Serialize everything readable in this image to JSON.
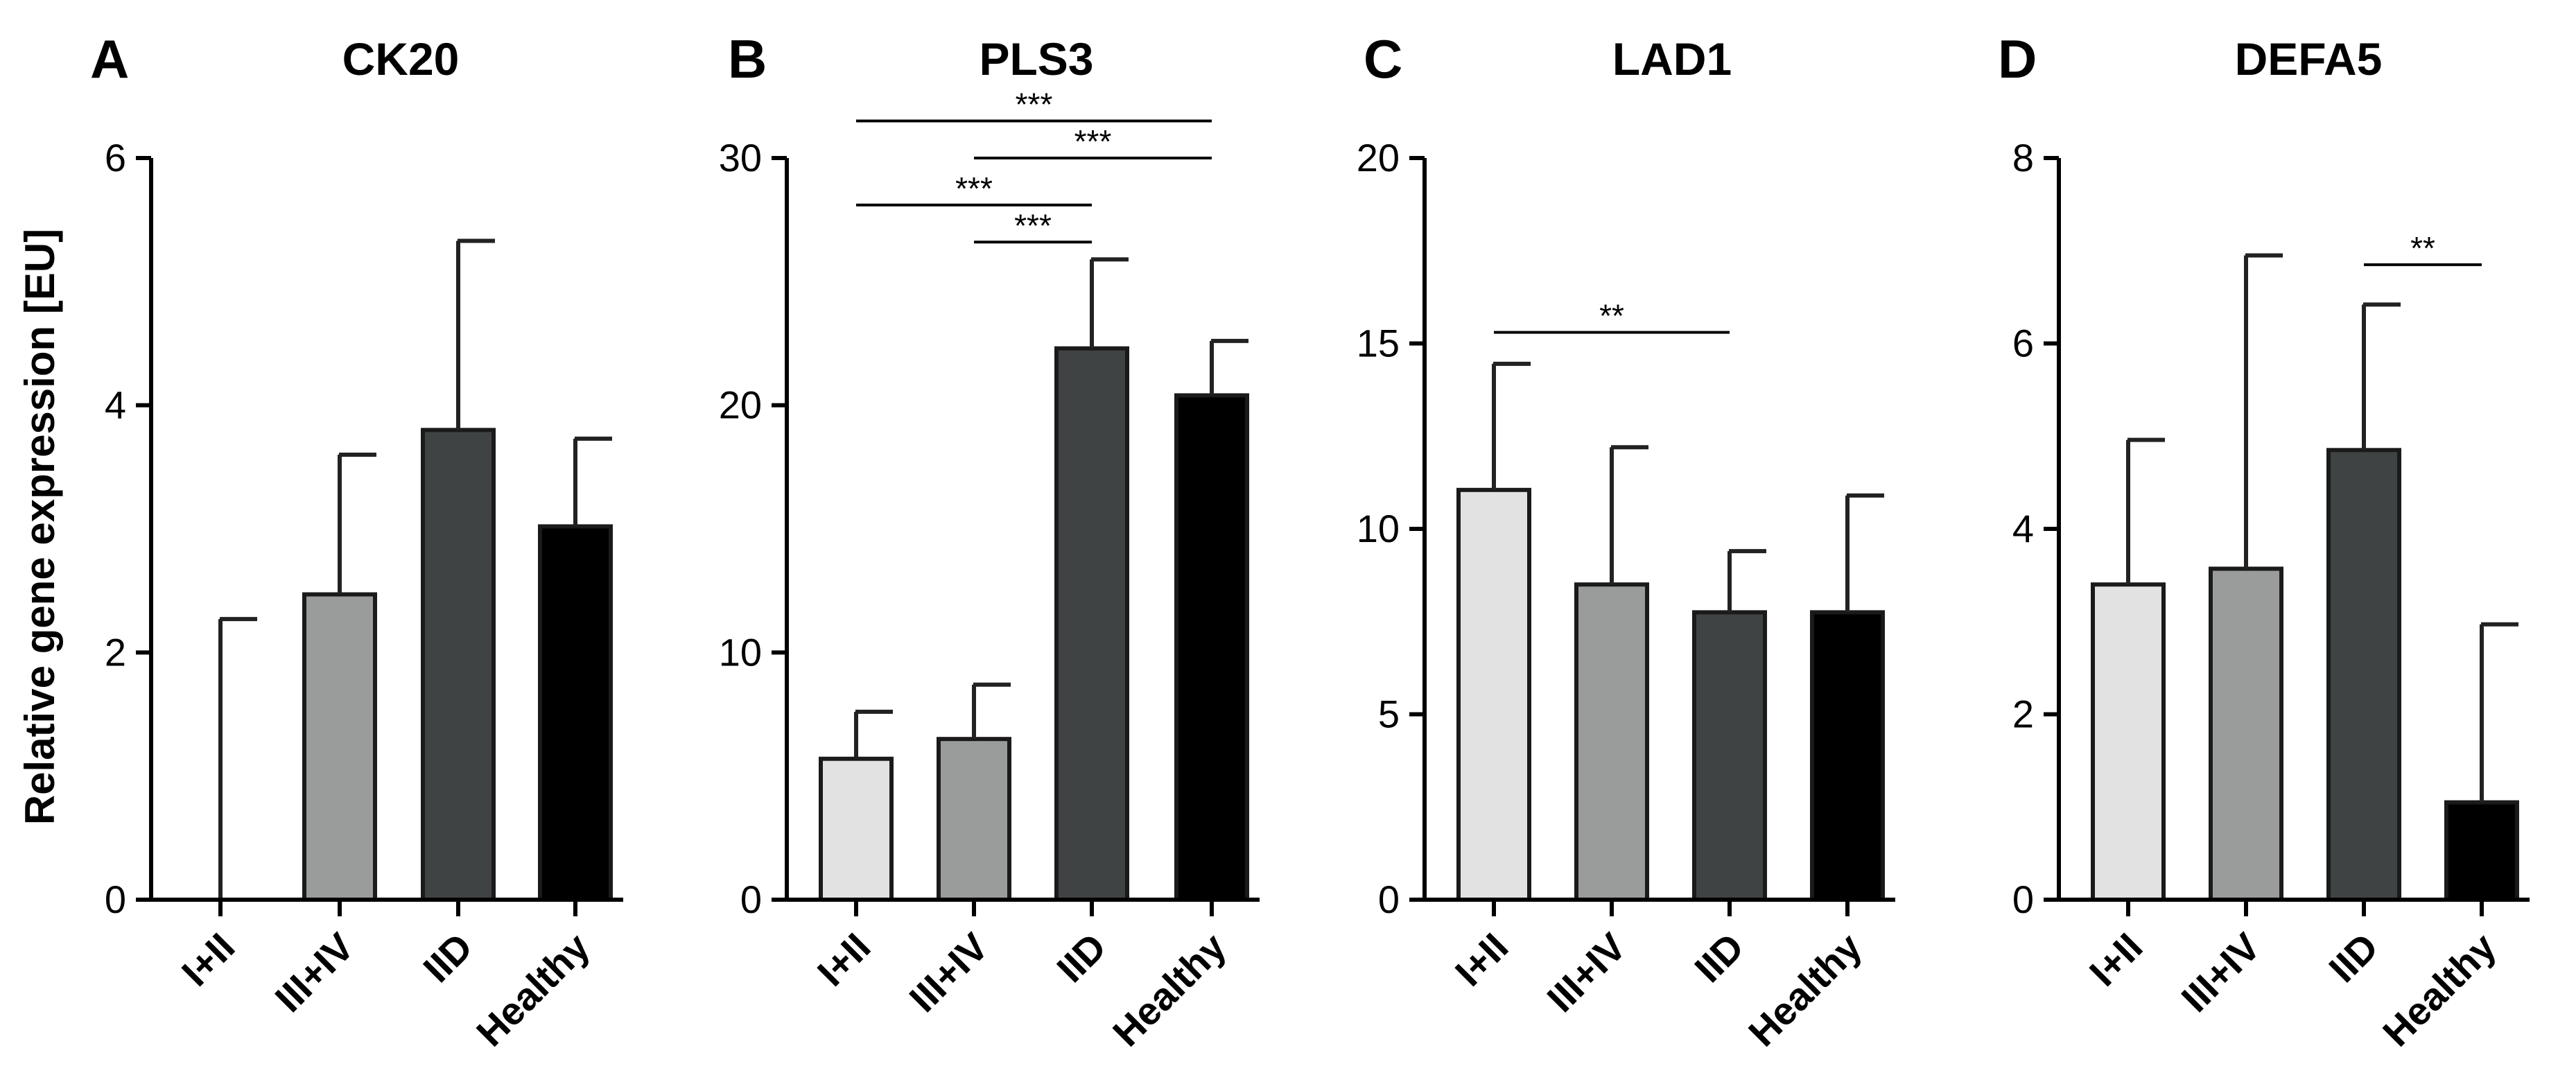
{
  "figure": {
    "ylabel": "Relative gene expression [EU]"
  },
  "chart_data": [
    {
      "type": "bar",
      "panel": "A",
      "title": "CK20",
      "categories": [
        "I+II",
        "III+IV",
        "IID",
        "Healthy"
      ],
      "values": [
        0,
        2.47,
        3.8,
        3.02
      ],
      "errors": [
        2.27,
        1.13,
        1.53,
        0.71
      ],
      "colors": [
        "#e2e2e2",
        "#9a9c9c",
        "#404344",
        "#000000"
      ],
      "ylim": [
        0,
        6
      ],
      "yticks": [
        "0",
        "2",
        "4",
        "6"
      ],
      "significance": []
    },
    {
      "type": "bar",
      "panel": "B",
      "title": "PLS3",
      "categories": [
        "I+II",
        "III+IV",
        "IID",
        "Healthy"
      ],
      "values": [
        5.7,
        6.5,
        22.3,
        20.4
      ],
      "errors": [
        1.9,
        2.2,
        3.6,
        2.2
      ],
      "colors": [
        "#e2e2e2",
        "#9a9c9c",
        "#404344",
        "#000000"
      ],
      "ylim": [
        0,
        30
      ],
      "yticks": [
        "0",
        "10",
        "20",
        "30"
      ],
      "significance": [
        {
          "from": 0,
          "to": 3,
          "y": 31.5,
          "label": "***"
        },
        {
          "from": 1,
          "to": 3,
          "y": 30.0,
          "label": "***"
        },
        {
          "from": 0,
          "to": 2,
          "y": 28.1,
          "label": "***"
        },
        {
          "from": 1,
          "to": 2,
          "y": 26.6,
          "label": "***"
        }
      ]
    },
    {
      "type": "bar",
      "panel": "C",
      "title": "LAD1",
      "categories": [
        "I+II",
        "III+IV",
        "IID",
        "Healthy"
      ],
      "values": [
        11.05,
        8.5,
        7.75,
        7.75
      ],
      "errors": [
        3.4,
        3.7,
        1.65,
        3.15
      ],
      "colors": [
        "#e2e2e2",
        "#9a9c9c",
        "#404344",
        "#000000"
      ],
      "ylim": [
        0,
        20
      ],
      "yticks": [
        "0",
        "5",
        "10",
        "15",
        "20"
      ],
      "significance": [
        {
          "from": 0,
          "to": 2,
          "y": 15.3,
          "label": "**"
        }
      ]
    },
    {
      "type": "bar",
      "panel": "D",
      "title": "DEFA5",
      "categories": [
        "I+II",
        "III+IV",
        "IID",
        "Healthy"
      ],
      "values": [
        3.4,
        3.57,
        4.85,
        1.05
      ],
      "errors": [
        1.56,
        3.38,
        1.57,
        1.92
      ],
      "colors": [
        "#e2e2e2",
        "#9a9c9c",
        "#404344",
        "#000000"
      ],
      "ylim": [
        0,
        8
      ],
      "yticks": [
        "0",
        "2",
        "4",
        "6",
        "8"
      ],
      "significance": [
        {
          "from": 2,
          "to": 3,
          "y": 6.85,
          "label": "**"
        }
      ]
    }
  ]
}
